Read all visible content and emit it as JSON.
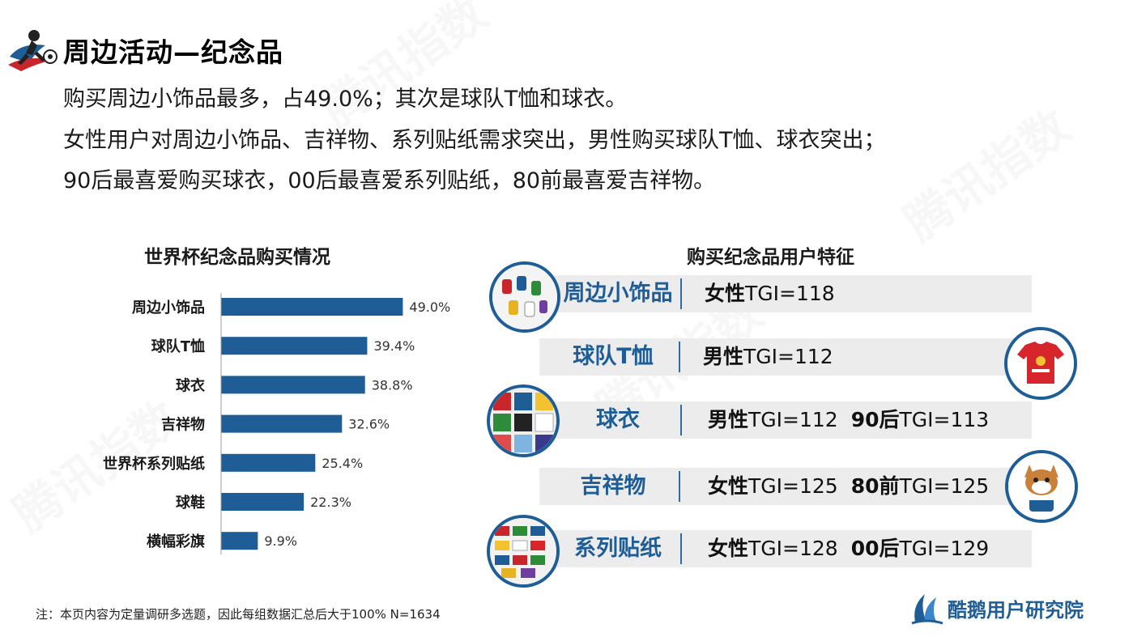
{
  "header": {
    "title": "周边活动—纪念品",
    "lines": [
      "购买周边小饰品最多，占49.0%；其次是球队T恤和球衣。",
      "女性用户对周边小饰品、吉祥物、系列贴纸需求突出，男性购买球队T恤、球衣突出；",
      "90后最喜爱购买球衣，00后最喜爱系列贴纸，80前最喜爱吉祥物。"
    ]
  },
  "chart_data": {
    "type": "bar",
    "orientation": "horizontal",
    "title": "世界杯纪念品购买情况",
    "categories": [
      "周边小饰品",
      "球队T恤",
      "球衣",
      "吉祥物",
      "世界杯系列贴纸",
      "球鞋",
      "横幅彩旗"
    ],
    "values": [
      49.0,
      39.4,
      38.8,
      32.6,
      25.4,
      22.3,
      9.9
    ],
    "value_labels": [
      "49.0%",
      "39.4%",
      "38.8%",
      "32.6%",
      "25.4%",
      "22.3%",
      "9.9%"
    ],
    "xlabel": "",
    "ylabel": "",
    "xlim": [
      0,
      100
    ],
    "grid": false,
    "bar_color": "#1f5d96"
  },
  "features": {
    "title": "购买纪念品用户特征",
    "rows": [
      {
        "name": "周边小饰品",
        "items": [
          {
            "tag": "女性",
            "value": "TGI=118"
          }
        ]
      },
      {
        "name": "球队T恤",
        "items": [
          {
            "tag": "男性",
            "value": "TGI=112"
          }
        ]
      },
      {
        "name": "球衣",
        "items": [
          {
            "tag": "男性",
            "value": "TGI=112"
          },
          {
            "tag": "90后",
            "value": "TGI=113"
          }
        ]
      },
      {
        "name": "吉祥物",
        "items": [
          {
            "tag": "女性",
            "value": "TGI=125"
          },
          {
            "tag": "80前",
            "value": "TGI=125"
          }
        ]
      },
      {
        "name": "系列贴纸",
        "items": [
          {
            "tag": "女性",
            "value": "TGI=128"
          },
          {
            "tag": "00后",
            "value": "TGI=129"
          }
        ]
      }
    ]
  },
  "footer": {
    "note": "注：本页内容为定量调研多选题，因此每组数据汇总后大于100%  N=1634",
    "brand": "酷鹅用户研究院"
  },
  "watermark": "腾讯指数",
  "colors": {
    "accent": "#1f5d96",
    "row_bg": "#ececec"
  }
}
